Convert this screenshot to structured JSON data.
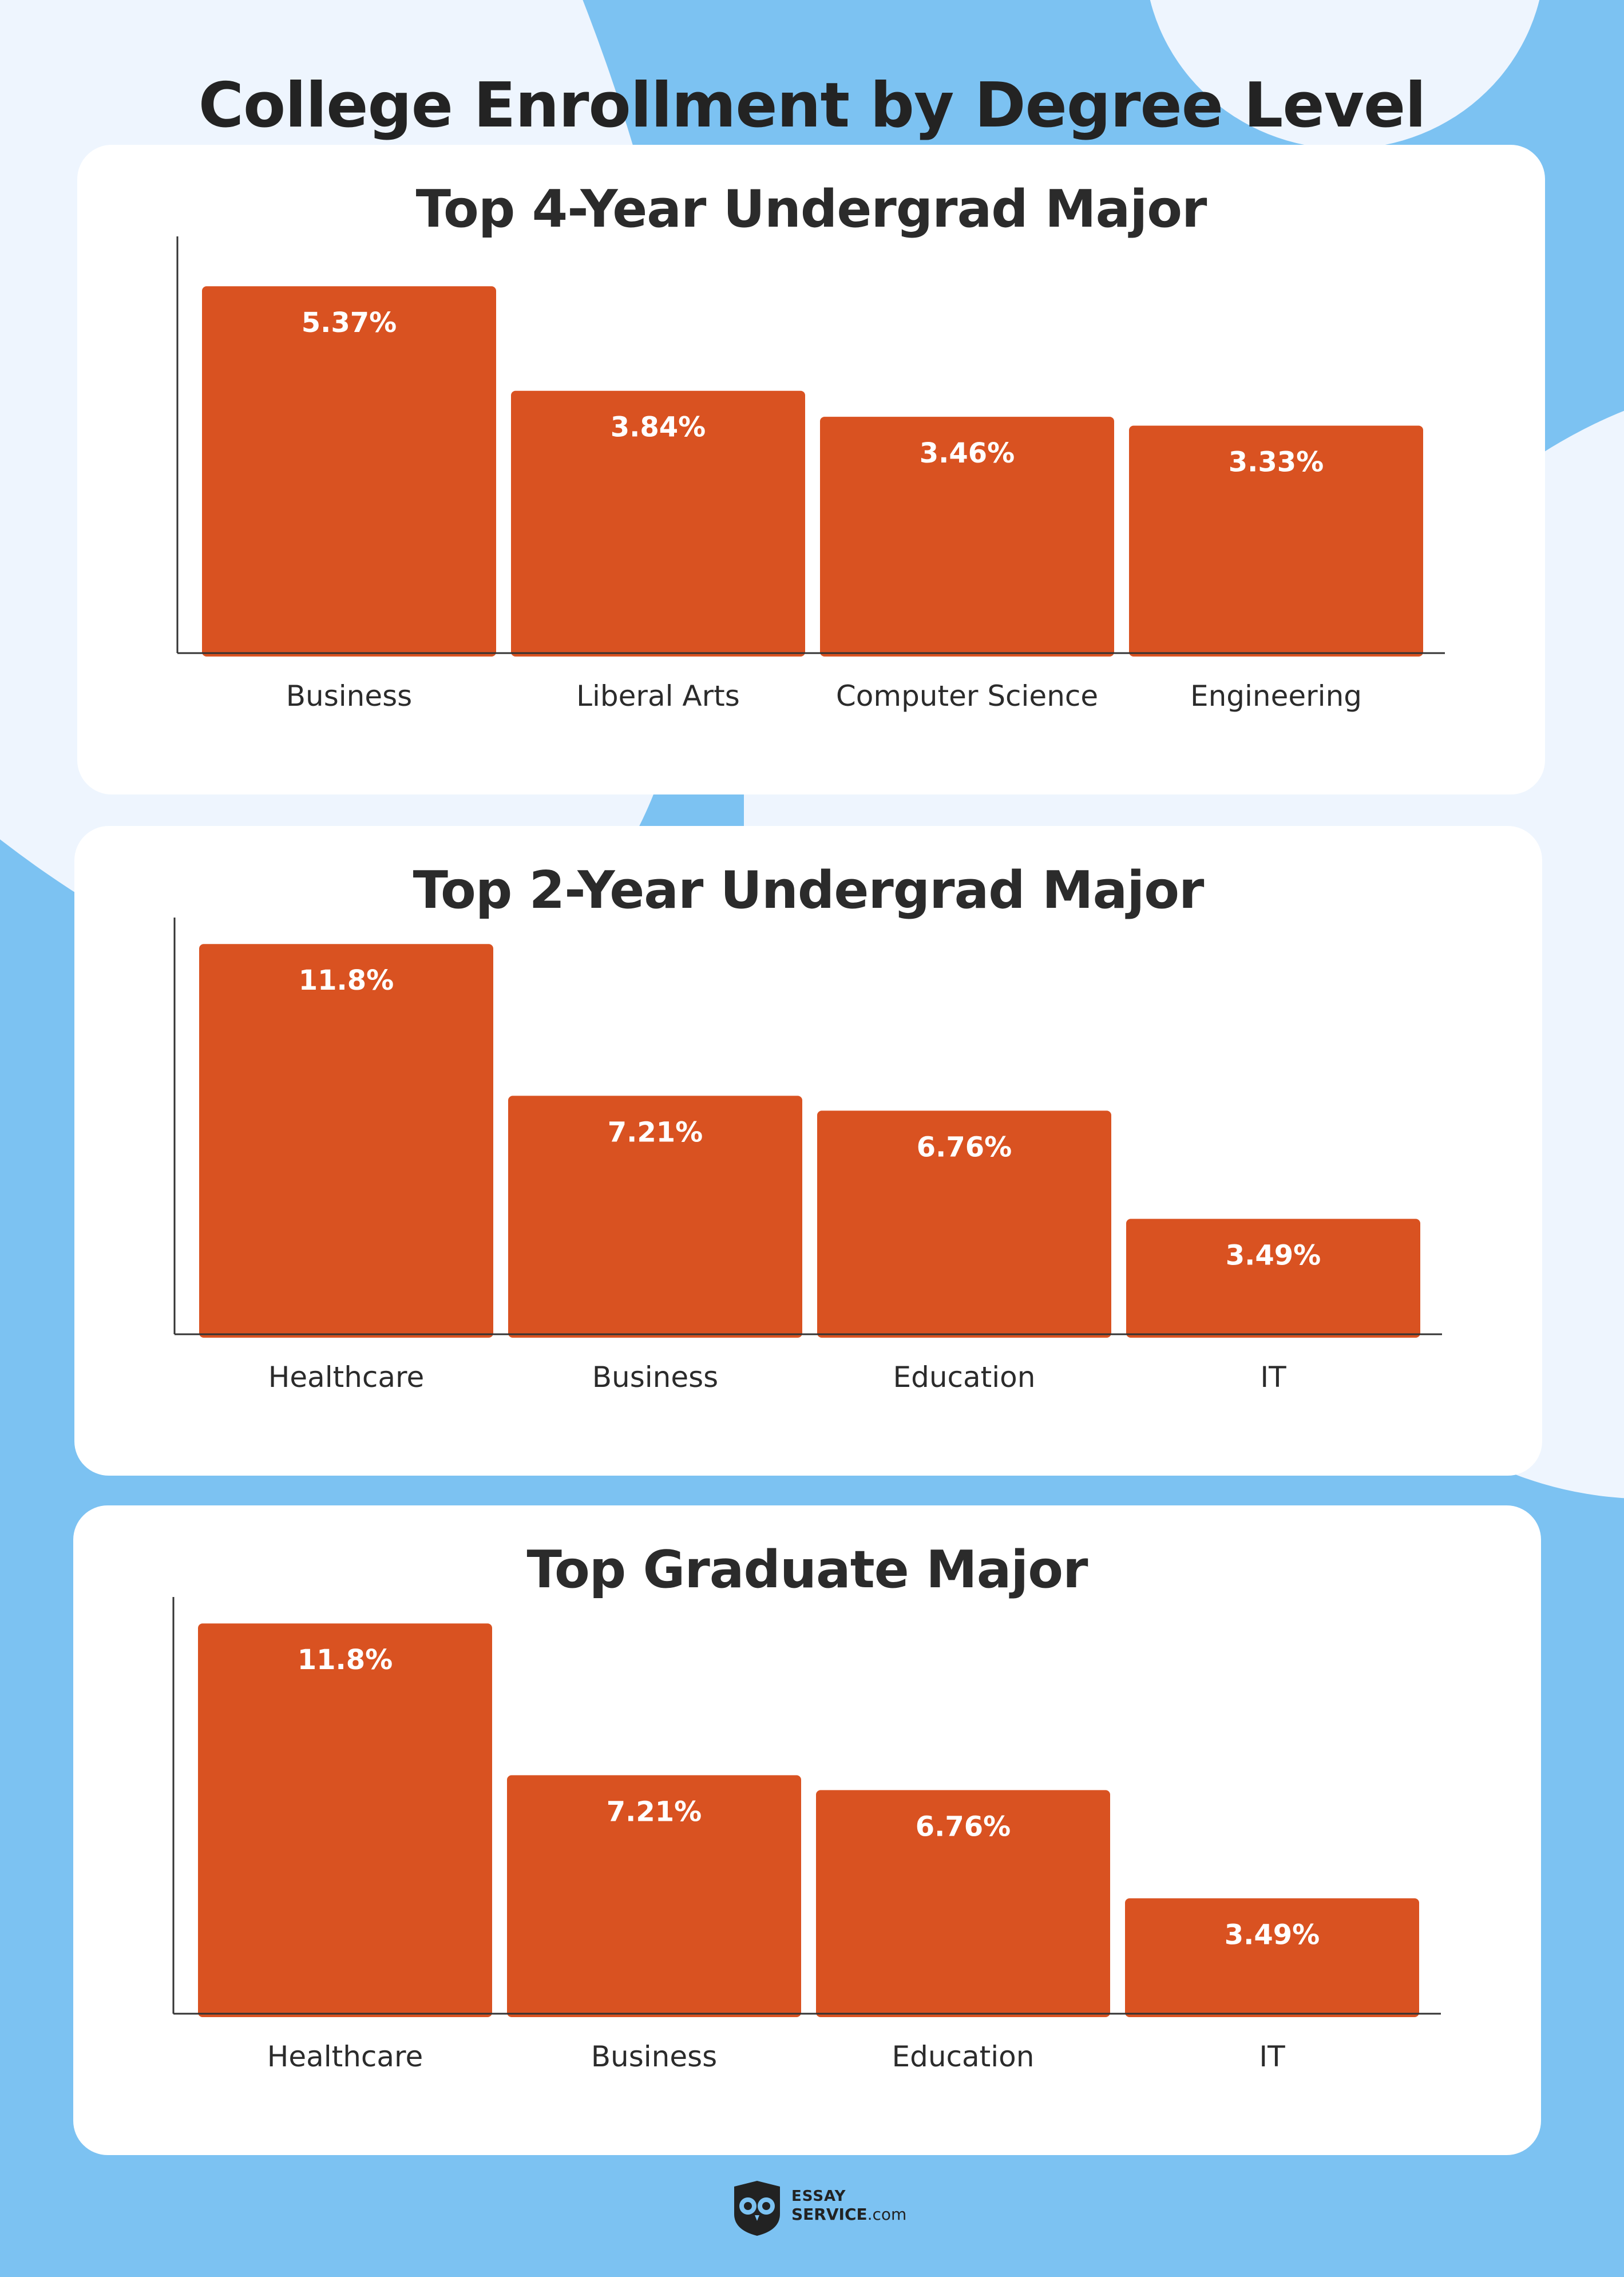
{
  "page": {
    "title": "College Enrollment by Degree Level",
    "background_color": "#7cc2f2",
    "bar_color": "#d95221"
  },
  "chart_data": [
    {
      "type": "bar",
      "title": "Top 4-Year Undergrad Major",
      "categories": [
        "Business",
        "Liberal Arts",
        "Computer Science",
        "Engineering"
      ],
      "values": [
        5.37,
        3.84,
        3.46,
        3.33
      ],
      "value_labels": [
        "5.37%",
        "3.84%",
        "3.46%",
        "3.33%"
      ],
      "ylim": [
        0,
        6.1
      ],
      "grid": false
    },
    {
      "type": "bar",
      "title": "Top 2-Year Undergrad Major",
      "categories": [
        "Healthcare",
        "Business",
        "Education",
        "IT"
      ],
      "values": [
        11.8,
        7.21,
        6.76,
        3.49
      ],
      "value_labels": [
        "11.8%",
        "7.21%",
        "6.76%",
        "3.49%"
      ],
      "ylim": [
        0,
        12.6
      ],
      "grid": false
    },
    {
      "type": "bar",
      "title": "Top Graduate Major",
      "categories": [
        "Healthcare",
        "Business",
        "Education",
        "IT"
      ],
      "values": [
        11.8,
        7.21,
        6.76,
        3.49
      ],
      "value_labels": [
        "11.8%",
        "7.21%",
        "6.76%",
        "3.49%"
      ],
      "ylim": [
        0,
        12.6
      ],
      "grid": false
    }
  ],
  "logo": {
    "line1": "ESSAY",
    "line2_bold": "SERVICE",
    "line2_rest": ".com",
    "icon": "owl-icon"
  }
}
